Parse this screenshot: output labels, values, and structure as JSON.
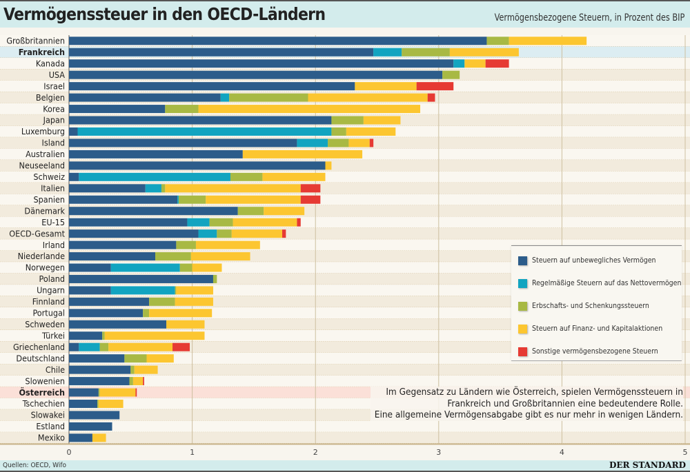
{
  "header": {
    "title": "Vermögenssteuer in den OECD-Ländern",
    "subtitle": "Vermögensbezogene Steuern, in Prozent des BIP"
  },
  "footer": {
    "source": "Quellen: OECD, Wifo",
    "brand": "DER STANDARD"
  },
  "note": [
    "Im Gegensatz zu Ländern wie Österreich, spielen Vermögenssteuern in",
    "Frankreich und Großbritannien eine bedeutendere Rolle.",
    "Eine allgemeine Vermögensabgabe gibt es nur mehr in wenigen Ländern."
  ],
  "chart_data": {
    "type": "bar",
    "orientation": "horizontal",
    "stacked": true,
    "title": "Vermögenssteuer in den OECD-Ländern",
    "subtitle": "Vermögensbezogene Steuern, in Prozent des BIP",
    "xlim": [
      0,
      5
    ],
    "xticks": [
      0,
      1,
      2,
      3,
      4,
      5
    ],
    "grid": true,
    "legend_position": "right",
    "highlighted": {
      "Frankreich": "#dcedf2",
      "Österreich": "#fbe0d8"
    },
    "categories": [
      "Großbritannien",
      "Frankreich",
      "Kanada",
      "USA",
      "Israel",
      "Belgien",
      "Korea",
      "Japan",
      "Luxemburg",
      "Island",
      "Australien",
      "Neuseeland",
      "Schweiz",
      "Italien",
      "Spanien",
      "Dänemark",
      "EU-15",
      "OECD-Gesamt",
      "Irland",
      "Niederlande",
      "Norwegen",
      "Poland",
      "Ungarn",
      "Finnland",
      "Portugal",
      "Schweden",
      "Türkei",
      "Griechenland",
      "Deutschland",
      "Chile",
      "Slowenien",
      "Österreich",
      "Tschechien",
      "Slowakei",
      "Estland",
      "Mexiko"
    ],
    "series": [
      {
        "name": "Steuern auf unbewegliches Vermögen",
        "color": "#2c5c8a",
        "values": [
          3.39,
          2.47,
          3.12,
          3.03,
          2.32,
          1.23,
          0.78,
          2.13,
          0.07,
          1.85,
          1.41,
          2.08,
          0.08,
          0.62,
          0.88,
          1.37,
          0.96,
          1.05,
          0.87,
          0.7,
          0.34,
          1.17,
          0.34,
          0.65,
          0.6,
          0.79,
          0.27,
          0.08,
          0.45,
          0.5,
          0.49,
          0.24,
          0.23,
          0.41,
          0.35,
          0.19
        ]
      },
      {
        "name": "Regelmäßige Steuern auf das Nettovermögen",
        "color": "#12a4c0",
        "values": [
          0,
          0.23,
          0.09,
          0,
          0,
          0.07,
          0,
          0,
          2.06,
          0.25,
          0,
          0,
          1.23,
          0.13,
          0.01,
          0,
          0.18,
          0.15,
          0,
          0,
          0.56,
          0,
          0.52,
          0,
          0,
          0,
          0,
          0.17,
          0,
          0,
          0,
          0,
          0,
          0,
          0,
          0
        ]
      },
      {
        "name": "Erbschafts- und Schenkungssteuern",
        "color": "#a8b944",
        "values": [
          0.18,
          0.39,
          0,
          0.14,
          0,
          0.64,
          0.27,
          0.26,
          0.12,
          0.17,
          0,
          0,
          0.26,
          0.03,
          0.22,
          0.21,
          0.19,
          0.12,
          0.16,
          0.29,
          0.1,
          0.03,
          0.01,
          0.21,
          0.05,
          0,
          0.02,
          0.07,
          0.18,
          0.03,
          0.03,
          0.01,
          0.01,
          0,
          0,
          0
        ]
      },
      {
        "name": "Steuern auf Finanz- und Kapitalaktionen",
        "color": "#fcc630",
        "values": [
          0.63,
          0.56,
          0.17,
          0,
          0.5,
          0.97,
          1.8,
          0.3,
          0.4,
          0.17,
          0.97,
          0.05,
          0.51,
          1.1,
          0.77,
          0.33,
          0.52,
          0.41,
          0.52,
          0.48,
          0.24,
          0,
          0.3,
          0.31,
          0.51,
          0.31,
          0.81,
          0.52,
          0.22,
          0.19,
          0.08,
          0.29,
          0.2,
          0,
          0,
          0.11
        ]
      },
      {
        "name": "Sonstige vermögensbezogene Steuern",
        "color": "#e63a33",
        "values": [
          0,
          0,
          0.19,
          0,
          0.3,
          0.06,
          0,
          0,
          0,
          0.03,
          0,
          0,
          0,
          0.16,
          0.16,
          0,
          0.03,
          0.03,
          0,
          0,
          0,
          0,
          0,
          0,
          0,
          0,
          0,
          0.14,
          0,
          0,
          0.01,
          0.01,
          0,
          0,
          0,
          0
        ]
      }
    ]
  }
}
